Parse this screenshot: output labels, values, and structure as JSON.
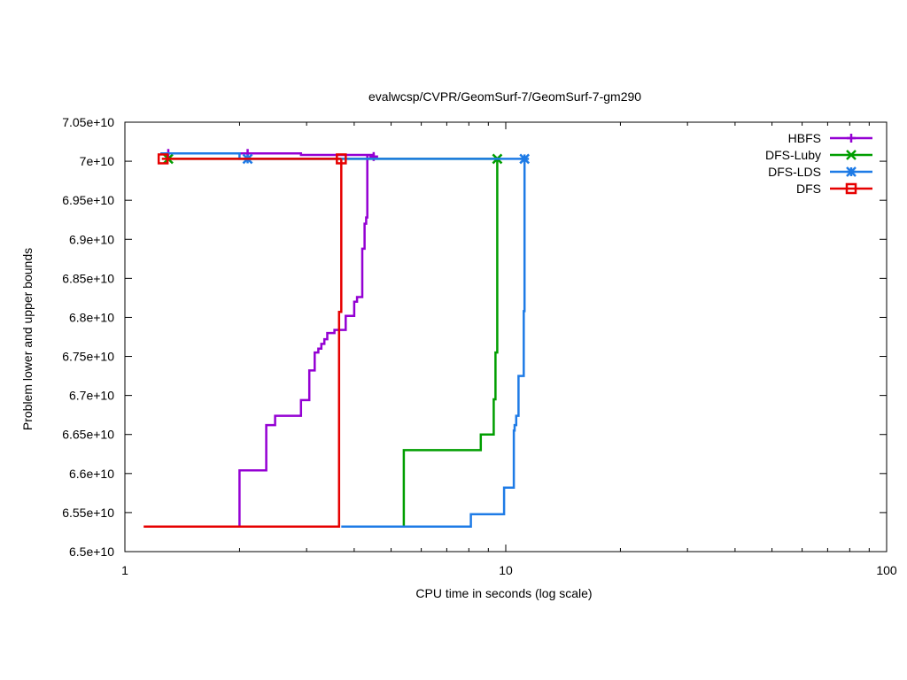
{
  "chart_data": {
    "type": "line",
    "title": "evalwcsp/CVPR/GeomSurf-7/GeomSurf-7-gm290",
    "xlabel": "CPU time in seconds (log scale)",
    "ylabel": "Problem lower and upper bounds",
    "xscale": "log",
    "xlim": [
      1,
      100
    ],
    "ylim": [
      65000000000,
      70500000000
    ],
    "xticks": [
      {
        "value": 1,
        "label": "1"
      },
      {
        "value": 10,
        "label": "10"
      },
      {
        "value": 100,
        "label": "100"
      }
    ],
    "yticks": [
      {
        "value": 65000000000,
        "label": "6.5e+10"
      },
      {
        "value": 65500000000,
        "label": "6.55e+10"
      },
      {
        "value": 66000000000,
        "label": "6.6e+10"
      },
      {
        "value": 66500000000,
        "label": "6.65e+10"
      },
      {
        "value": 67000000000,
        "label": "6.7e+10"
      },
      {
        "value": 67500000000,
        "label": "6.75e+10"
      },
      {
        "value": 68000000000,
        "label": "6.8e+10"
      },
      {
        "value": 68500000000,
        "label": "6.85e+10"
      },
      {
        "value": 69000000000,
        "label": "6.9e+10"
      },
      {
        "value": 69500000000,
        "label": "6.95e+10"
      },
      {
        "value": 70000000000,
        "label": "7e+10"
      },
      {
        "value": 70500000000,
        "label": "7.05e+10"
      }
    ],
    "grid": false,
    "legend_position": "top-right",
    "series": [
      {
        "name": "HBFS",
        "color": "#9400d3",
        "marker": "plus",
        "step": true,
        "upper": [
          [
            1.24,
            70100000000
          ],
          [
            2.9,
            70100000000
          ],
          [
            2.9,
            70080000000
          ],
          [
            4.5,
            70080000000
          ],
          [
            4.5,
            70060000000
          ]
        ],
        "lower": [
          [
            2.0,
            65320000000
          ],
          [
            2.0,
            66040000000
          ],
          [
            2.35,
            66040000000
          ],
          [
            2.35,
            66620000000
          ],
          [
            2.48,
            66620000000
          ],
          [
            2.48,
            66740000000
          ],
          [
            2.9,
            66740000000
          ],
          [
            2.9,
            66940000000
          ],
          [
            3.05,
            66940000000
          ],
          [
            3.05,
            67320000000
          ],
          [
            3.15,
            67320000000
          ],
          [
            3.15,
            67550000000
          ],
          [
            3.22,
            67550000000
          ],
          [
            3.22,
            67600000000
          ],
          [
            3.28,
            67600000000
          ],
          [
            3.28,
            67660000000
          ],
          [
            3.34,
            67660000000
          ],
          [
            3.34,
            67720000000
          ],
          [
            3.4,
            67720000000
          ],
          [
            3.4,
            67800000000
          ],
          [
            3.55,
            67800000000
          ],
          [
            3.55,
            67840000000
          ],
          [
            3.8,
            67840000000
          ],
          [
            3.8,
            68020000000
          ],
          [
            4.0,
            68020000000
          ],
          [
            4.0,
            68200000000
          ],
          [
            4.07,
            68200000000
          ],
          [
            4.07,
            68260000000
          ],
          [
            4.2,
            68260000000
          ],
          [
            4.2,
            68880000000
          ],
          [
            4.26,
            68880000000
          ],
          [
            4.26,
            69200000000
          ],
          [
            4.3,
            69200000000
          ],
          [
            4.3,
            69280000000
          ],
          [
            4.33,
            69280000000
          ],
          [
            4.33,
            70080000000
          ]
        ],
        "markers": [
          [
            1.3,
            70100000000
          ],
          [
            2.1,
            70100000000
          ],
          [
            4.5,
            70060000000
          ]
        ]
      },
      {
        "name": "DFS-Luby",
        "color": "#009e00",
        "marker": "x",
        "step": true,
        "upper": [
          [
            1.3,
            70030000000
          ],
          [
            9.5,
            70030000000
          ]
        ],
        "lower": [
          [
            5.4,
            65320000000
          ],
          [
            5.4,
            66300000000
          ],
          [
            8.6,
            66300000000
          ],
          [
            8.6,
            66500000000
          ],
          [
            9.3,
            66500000000
          ],
          [
            9.3,
            66950000000
          ],
          [
            9.4,
            66950000000
          ],
          [
            9.4,
            67550000000
          ],
          [
            9.5,
            67550000000
          ],
          [
            9.5,
            70030000000
          ]
        ],
        "markers": [
          [
            1.3,
            70030000000
          ],
          [
            9.5,
            70030000000
          ]
        ]
      },
      {
        "name": "DFS-LDS",
        "color": "#1e7be6",
        "marker": "star",
        "step": true,
        "upper": [
          [
            1.24,
            70100000000
          ],
          [
            2.0,
            70100000000
          ],
          [
            2.0,
            70030000000
          ],
          [
            11.2,
            70030000000
          ]
        ],
        "lower": [
          [
            3.7,
            65320000000
          ],
          [
            8.1,
            65320000000
          ],
          [
            8.1,
            65480000000
          ],
          [
            9.9,
            65480000000
          ],
          [
            9.9,
            65820000000
          ],
          [
            10.5,
            65820000000
          ],
          [
            10.5,
            66550000000
          ],
          [
            10.55,
            66550000000
          ],
          [
            10.55,
            66620000000
          ],
          [
            10.65,
            66620000000
          ],
          [
            10.65,
            66740000000
          ],
          [
            10.8,
            66740000000
          ],
          [
            10.8,
            67250000000
          ],
          [
            11.15,
            67250000000
          ],
          [
            11.15,
            68080000000
          ],
          [
            11.2,
            68080000000
          ],
          [
            11.2,
            70030000000
          ]
        ],
        "markers": [
          [
            2.1,
            70030000000
          ],
          [
            11.2,
            70030000000
          ]
        ]
      },
      {
        "name": "DFS",
        "color": "#e60000",
        "marker": "square",
        "step": true,
        "upper": [
          [
            1.25,
            70030000000
          ],
          [
            3.7,
            70030000000
          ]
        ],
        "lower": [
          [
            1.12,
            65320000000
          ],
          [
            3.65,
            65320000000
          ],
          [
            3.65,
            68070000000
          ],
          [
            3.7,
            68070000000
          ],
          [
            3.7,
            70030000000
          ]
        ],
        "markers": [
          [
            1.26,
            70030000000
          ],
          [
            3.7,
            70030000000
          ]
        ]
      }
    ]
  }
}
